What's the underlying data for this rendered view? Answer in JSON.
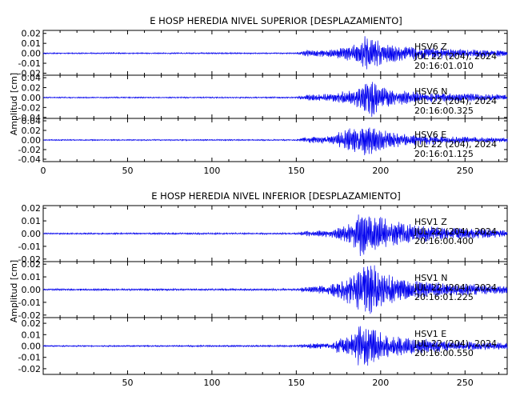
{
  "chart_data": [
    {
      "type": "line",
      "title": "E HOSP HEREDIA NIVEL SUPERIOR [DESPLAZAMIENTO]",
      "ylabel": "Amplitud [cm]",
      "xlim": [
        0,
        275
      ],
      "x_ticks": [
        "0",
        "50",
        "100",
        "150",
        "200",
        "250"
      ],
      "series_color": "#0000ee",
      "panels": [
        {
          "name": "HSV6 Z",
          "station_label": "HSV6    Z",
          "date_label": "JUL 22 (204), 2024",
          "time_label": "20:16:01.010",
          "ylim": [
            -0.022,
            0.023
          ],
          "y_ticks": [
            "0.02",
            "0.01",
            "0.00",
            "-0.01",
            "-0.02"
          ],
          "envelope": [
            [
              0,
              0.0007
            ],
            [
              150,
              0.0007
            ],
            [
              155,
              0.003
            ],
            [
              170,
              0.004
            ],
            [
              182,
              0.008
            ],
            [
              188,
              0.013
            ],
            [
              192,
              0.021
            ],
            [
              196,
              0.016
            ],
            [
              200,
              0.012
            ],
            [
              210,
              0.009
            ],
            [
              220,
              0.007
            ],
            [
              240,
              0.005
            ],
            [
              275,
              0.003
            ]
          ]
        },
        {
          "name": "HSV6 N",
          "station_label": "HSV6    N",
          "date_label": "JUL 22 (204), 2024",
          "time_label": "20:16:00.325",
          "ylim": [
            -0.042,
            0.045
          ],
          "y_ticks": [
            "0.04",
            "0.02",
            "0.00",
            "-0.02",
            "-0.04"
          ],
          "envelope": [
            [
              0,
              0.0012
            ],
            [
              150,
              0.0015
            ],
            [
              155,
              0.006
            ],
            [
              170,
              0.008
            ],
            [
              185,
              0.018
            ],
            [
              190,
              0.03
            ],
            [
              195,
              0.04
            ],
            [
              200,
              0.022
            ],
            [
              210,
              0.016
            ],
            [
              230,
              0.01
            ],
            [
              275,
              0.006
            ]
          ]
        },
        {
          "name": "HSV6 E",
          "station_label": "HSV6    E",
          "date_label": "JUL 22 (204), 2024",
          "time_label": "20:16:01.125",
          "ylim": [
            -0.045,
            0.045
          ],
          "y_ticks": [
            "0.04",
            "0.02",
            "0.00",
            "-0.02",
            "-0.04"
          ],
          "envelope": [
            [
              0,
              0.0012
            ],
            [
              150,
              0.0015
            ],
            [
              155,
              0.006
            ],
            [
              170,
              0.009
            ],
            [
              185,
              0.03
            ],
            [
              190,
              0.036
            ],
            [
              195,
              0.03
            ],
            [
              205,
              0.018
            ],
            [
              220,
              0.012
            ],
            [
              240,
              0.008
            ],
            [
              275,
              0.005
            ]
          ]
        }
      ]
    },
    {
      "type": "line",
      "title": "E HOSP HEREDIA NIVEL INFERIOR [DESPLAZAMIENTO]",
      "ylabel": "Amplitud [cm]",
      "xlim": [
        0,
        275
      ],
      "x_ticks": [
        "50",
        "100",
        "150",
        "200",
        "250"
      ],
      "series_color": "#0000ee",
      "panels": [
        {
          "name": "HSV1 Z",
          "station_label": "HSV1    Z",
          "date_label": "JUL 22 (204), 2024",
          "time_label": "20:16:00.400",
          "ylim": [
            -0.022,
            0.022
          ],
          "y_ticks": [
            "0.02",
            "0.01",
            "0.00",
            "-0.01",
            "-0.02"
          ],
          "envelope": [
            [
              0,
              0.0006
            ],
            [
              150,
              0.0007
            ],
            [
              155,
              0.002
            ],
            [
              170,
              0.003
            ],
            [
              182,
              0.008
            ],
            [
              188,
              0.018
            ],
            [
              192,
              0.02
            ],
            [
              197,
              0.015
            ],
            [
              205,
              0.011
            ],
            [
              215,
              0.008
            ],
            [
              240,
              0.005
            ],
            [
              275,
              0.003
            ]
          ]
        },
        {
          "name": "HSV1 N",
          "station_label": "HSV1    N",
          "date_label": "JUL 22 (204), 2024",
          "time_label": "20:16:01.225",
          "ylim": [
            -0.022,
            0.022
          ],
          "y_ticks": [
            "0.02",
            "0.01",
            "0.00",
            "-0.01",
            "-0.02"
          ],
          "envelope": [
            [
              0,
              0.0007
            ],
            [
              150,
              0.0008
            ],
            [
              155,
              0.002
            ],
            [
              170,
              0.004
            ],
            [
              182,
              0.012
            ],
            [
              190,
              0.02
            ],
            [
              196,
              0.02
            ],
            [
              202,
              0.016
            ],
            [
              210,
              0.01
            ],
            [
              230,
              0.006
            ],
            [
              275,
              0.003
            ]
          ]
        },
        {
          "name": "HSV1 E",
          "station_label": "HSV1    E",
          "date_label": "JUL 22 (204), 2024",
          "time_label": "20:16:00.550",
          "ylim": [
            -0.025,
            0.025
          ],
          "y_ticks": [
            "0.02",
            "0.01",
            "0.00",
            "-0.01",
            "-0.02"
          ],
          "envelope": [
            [
              0,
              0.0006
            ],
            [
              150,
              0.0008
            ],
            [
              155,
              0.002
            ],
            [
              170,
              0.003
            ],
            [
              182,
              0.012
            ],
            [
              188,
              0.02
            ],
            [
              192,
              0.018
            ],
            [
              198,
              0.014
            ],
            [
              206,
              0.01
            ],
            [
              220,
              0.007
            ],
            [
              250,
              0.004
            ],
            [
              275,
              0.003
            ]
          ]
        }
      ]
    }
  ]
}
